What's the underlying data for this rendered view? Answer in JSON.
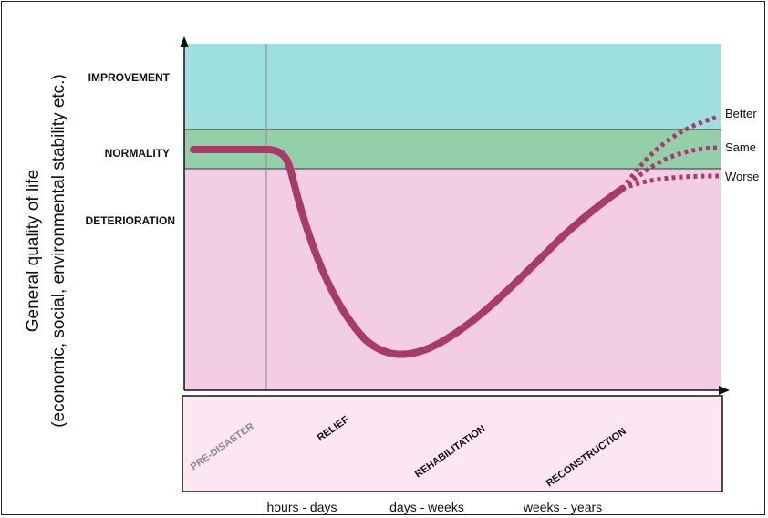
{
  "y_axis_label": {
    "line1": "General quality of life",
    "line2": "(economic, social, environmental stability etc.)"
  },
  "bands": {
    "improvement": {
      "label": "IMPROVEMENT",
      "color": "#9ee0de"
    },
    "normality": {
      "label": "NORMALITY",
      "color": "#93d0aa"
    },
    "deterioration": {
      "label": "DETERIORATION",
      "color": "#f3cde4"
    }
  },
  "phases": {
    "pre_disaster": "PRE-DISASTER",
    "relief": "RELIEF",
    "rehabilitation": "REHABILITATION",
    "reconstruction": "RECONSTRUCTION",
    "box_color": "#fbe6f1"
  },
  "outcomes": {
    "better": "Better",
    "same": "Same",
    "worse": "Worse"
  },
  "time_labels": {
    "t1": "hours - days",
    "t2": "days - weeks",
    "t3": "weeks - years"
  },
  "curve_color": "#a83a6c"
}
